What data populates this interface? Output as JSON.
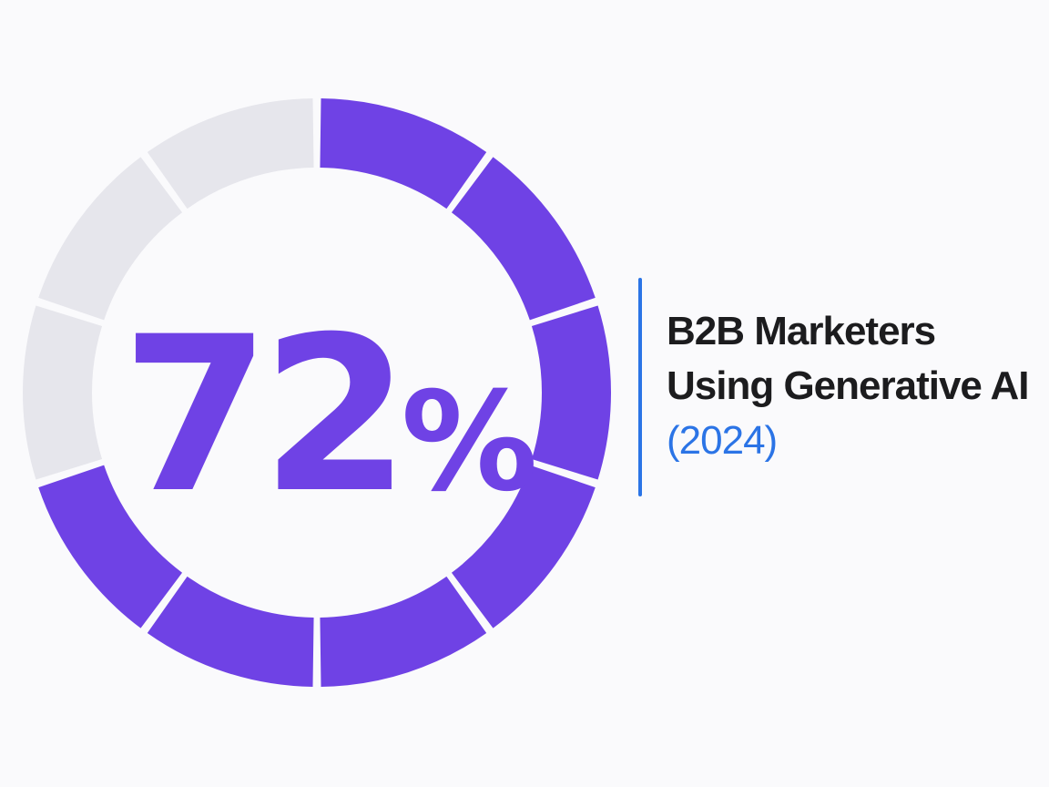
{
  "chart_data": {
    "type": "donut",
    "segments_total": 10,
    "value_percent": 72,
    "display_value": "72",
    "display_unit": "%",
    "title_lines": [
      "B2B Marketers",
      "Using Generative AI"
    ],
    "subtitle": "(2024)"
  },
  "colors": {
    "filled": "#6f42e5",
    "empty": "#e6e6ec",
    "accent": "#2b74e6",
    "text": "#1c1c1e"
  }
}
